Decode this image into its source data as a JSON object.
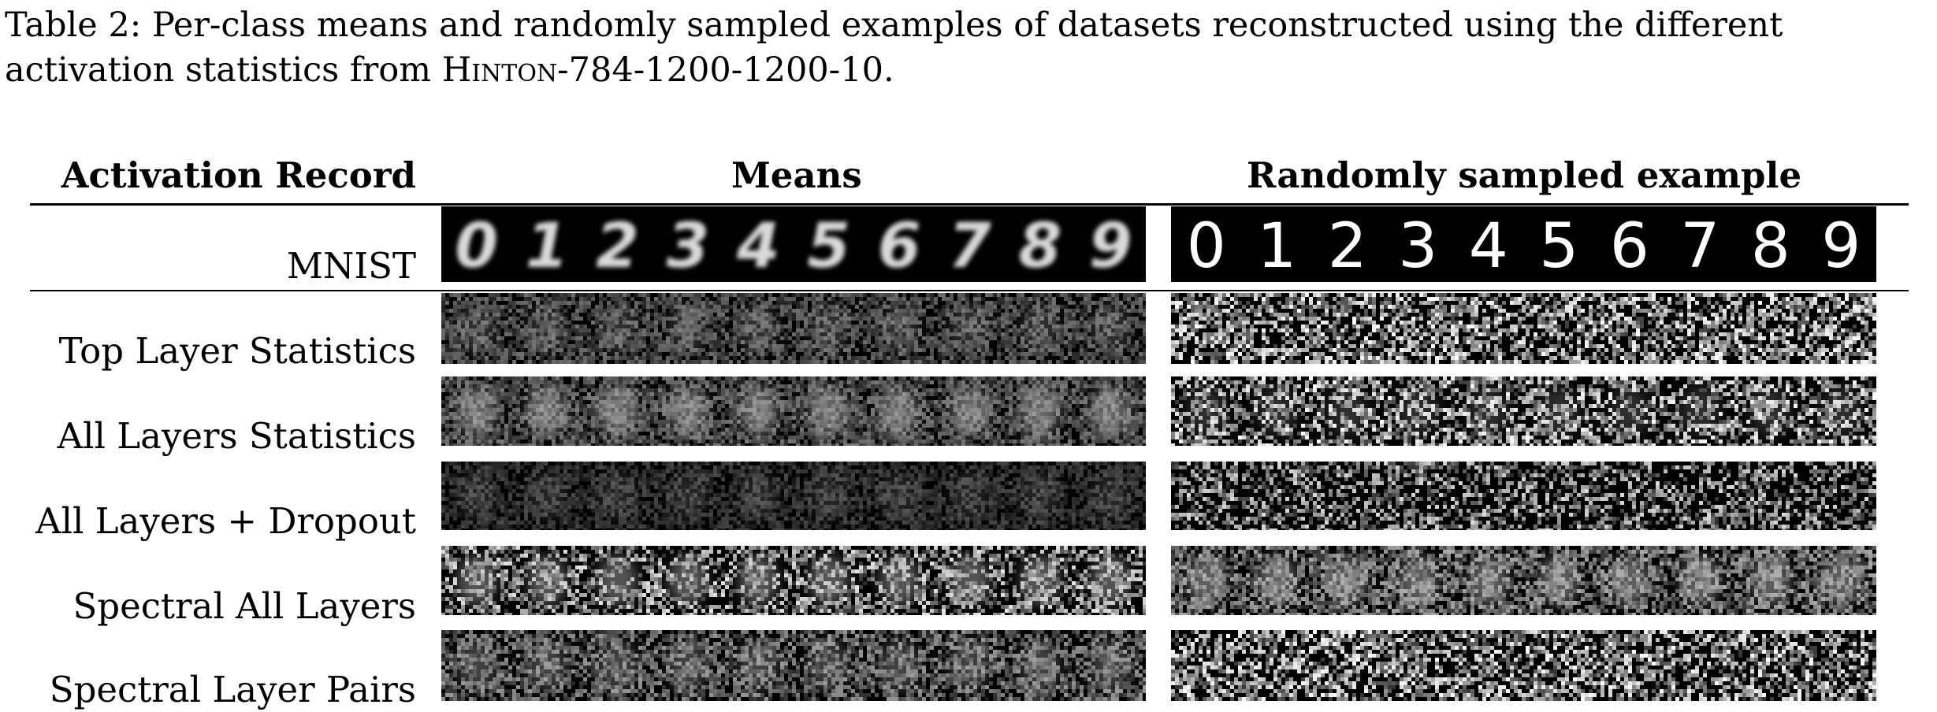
{
  "caption": {
    "prefix": "Table 2: Per-class means and randomly sampled examples of datasets reconstructed using the different activation statistics from ",
    "model": "Hinton-784-1200-1200-10",
    "suffix": "."
  },
  "table": {
    "headers": {
      "record": "Activation Record",
      "means": "Means",
      "sample": "Randomly sampled example"
    },
    "rows": [
      {
        "label": "MNIST",
        "style": "clean"
      },
      {
        "label": "Top Layer Statistics",
        "style": "faint"
      },
      {
        "label": "All Layers Statistics",
        "style": "blobs"
      },
      {
        "label": "All Layers + Dropout",
        "style": "dim"
      },
      {
        "label": "Spectral All Layers",
        "style": "speckled"
      },
      {
        "label": "Spectral Layer Pairs",
        "style": "noisy"
      }
    ],
    "digits": [
      "0",
      "1",
      "2",
      "3",
      "4",
      "5",
      "6",
      "7",
      "8",
      "9"
    ]
  }
}
